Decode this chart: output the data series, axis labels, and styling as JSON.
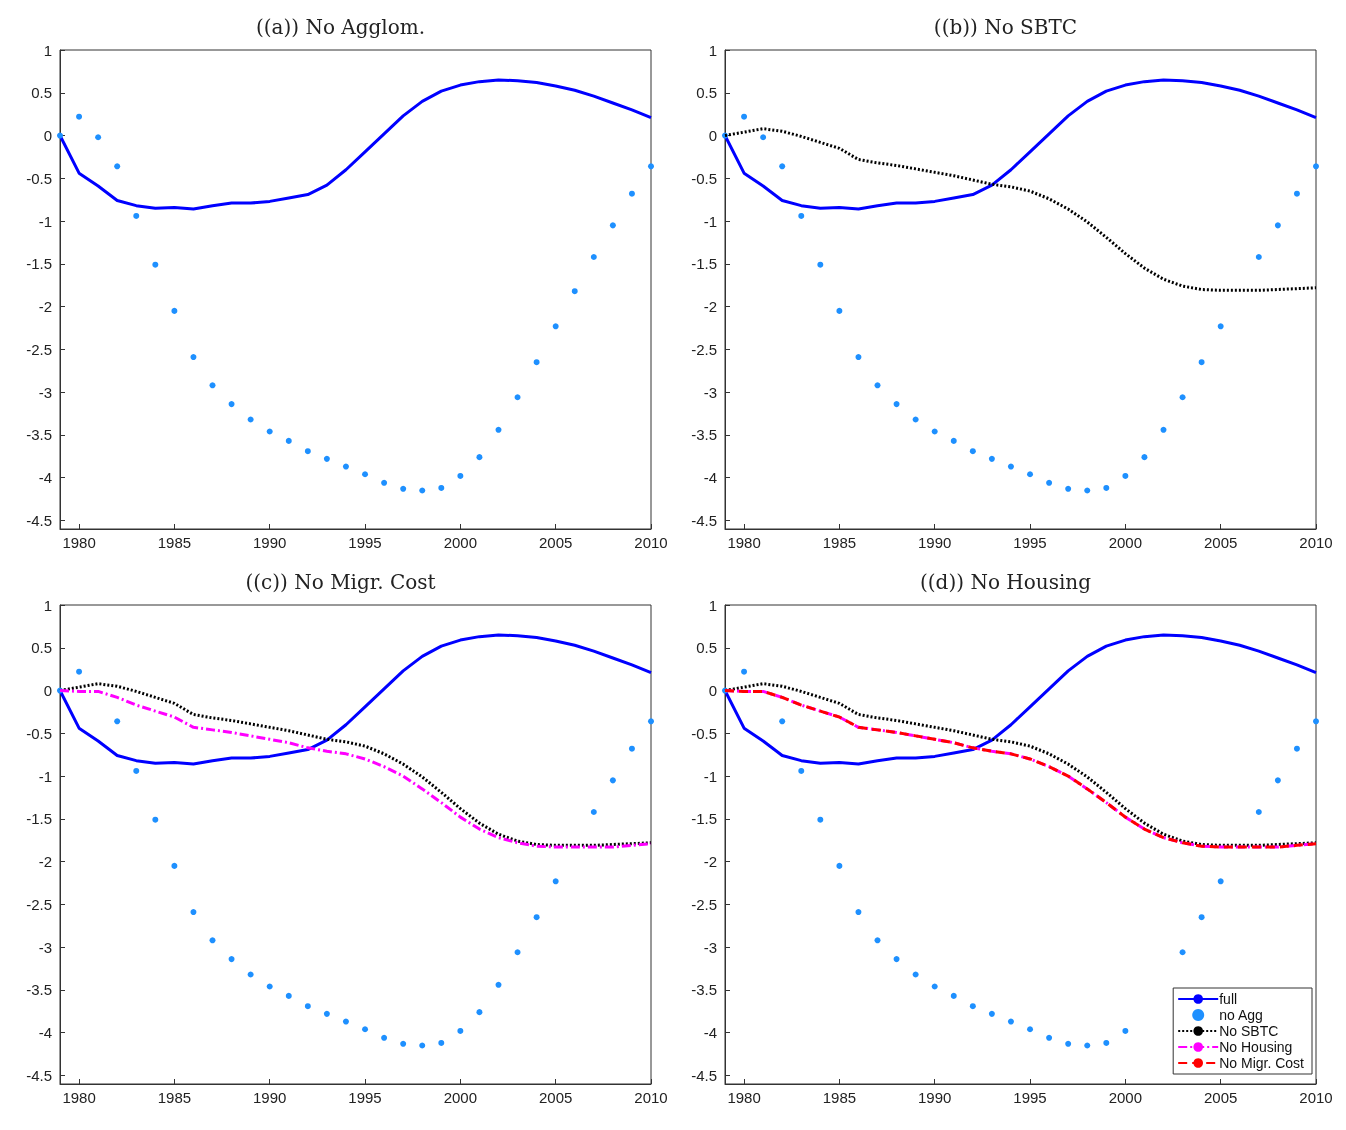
{
  "chart_data": [
    {
      "type": "line",
      "title": "((a)) No Agglom.",
      "x": [
        1979,
        1980,
        1981,
        1982,
        1983,
        1984,
        1985,
        1986,
        1987,
        1988,
        1989,
        1990,
        1991,
        1992,
        1993,
        1994,
        1995,
        1996,
        1997,
        1998,
        1999,
        2000,
        2001,
        2002,
        2003,
        2004,
        2005,
        2006,
        2007,
        2008,
        2009,
        2010
      ],
      "xlim": [
        1979,
        2010
      ],
      "xticks": [
        1980,
        1985,
        1990,
        1995,
        2000,
        2005,
        2010
      ],
      "ylim": [
        -4.6,
        1
      ],
      "yticks": [
        -4.5,
        -4,
        -3.5,
        -3,
        -2.5,
        -2,
        -1.5,
        -1,
        -0.5,
        0,
        0.5,
        1
      ],
      "grid": false,
      "legend": false,
      "series": [
        {
          "color": "#0000ff",
          "line_style": "solid",
          "marker": "none",
          "values": [
            0,
            -0.44,
            -0.59,
            -0.76,
            -0.82,
            -0.85,
            -0.84,
            -0.86,
            -0.82,
            -0.79,
            -0.79,
            -0.77,
            -0.73,
            -0.69,
            -0.58,
            -0.4,
            -0.19,
            0.02,
            0.23,
            0.4,
            0.52,
            0.59,
            0.63,
            0.65,
            0.64,
            0.62,
            0.58,
            0.53,
            0.46,
            0.38,
            0.3,
            0.21
          ]
        },
        {
          "type": "scatter",
          "color": "#1e90ff",
          "marker": "circle",
          "values": [
            0,
            0.22,
            -0.02,
            -0.36,
            -0.94,
            -1.51,
            -2.05,
            -2.59,
            -2.92,
            -3.14,
            -3.32,
            -3.46,
            -3.57,
            -3.69,
            -3.78,
            -3.87,
            -3.96,
            -4.06,
            -4.13,
            -4.15,
            -4.12,
            -3.98,
            -3.76,
            -3.44,
            -3.06,
            -2.65,
            -2.23,
            -1.82,
            -1.42,
            -1.05,
            -0.68,
            -0.36
          ]
        }
      ]
    },
    {
      "type": "line",
      "title": "((b)) No SBTC",
      "x": [
        1979,
        1980,
        1981,
        1982,
        1983,
        1984,
        1985,
        1986,
        1987,
        1988,
        1989,
        1990,
        1991,
        1992,
        1993,
        1994,
        1995,
        1996,
        1997,
        1998,
        1999,
        2000,
        2001,
        2002,
        2003,
        2004,
        2005,
        2006,
        2007,
        2008,
        2009,
        2010
      ],
      "xlim": [
        1979,
        2010
      ],
      "xticks": [
        1980,
        1985,
        1990,
        1995,
        2000,
        2005,
        2010
      ],
      "ylim": [
        -4.6,
        1
      ],
      "yticks": [
        -4.5,
        -4,
        -3.5,
        -3,
        -2.5,
        -2,
        -1.5,
        -1,
        -0.5,
        0,
        0.5,
        1
      ],
      "grid": false,
      "legend": false,
      "series": [
        {
          "type": "line",
          "color": "#0000ff",
          "line_style": "solid",
          "marker": "none",
          "values": [
            0,
            -0.44,
            -0.59,
            -0.76,
            -0.82,
            -0.85,
            -0.84,
            -0.86,
            -0.82,
            -0.79,
            -0.79,
            -0.77,
            -0.73,
            -0.69,
            -0.58,
            -0.4,
            -0.19,
            0.02,
            0.23,
            0.4,
            0.52,
            0.59,
            0.63,
            0.65,
            0.64,
            0.62,
            0.58,
            0.53,
            0.46,
            0.38,
            0.3,
            0.21
          ]
        },
        {
          "type": "scatter",
          "color": "#1e90ff",
          "marker": "circle",
          "values": [
            0,
            0.22,
            -0.02,
            -0.36,
            -0.94,
            -1.51,
            -2.05,
            -2.59,
            -2.92,
            -3.14,
            -3.32,
            -3.46,
            -3.57,
            -3.69,
            -3.78,
            -3.87,
            -3.96,
            -4.06,
            -4.13,
            -4.15,
            -4.12,
            -3.98,
            -3.76,
            -3.44,
            -3.06,
            -2.65,
            -2.23,
            null,
            -1.42,
            -1.05,
            -0.68,
            -0.36
          ]
        },
        {
          "type": "line",
          "color": "#000000",
          "line_style": "dotted",
          "marker": "none",
          "values": [
            0,
            0.04,
            0.08,
            0.05,
            -0.01,
            -0.08,
            -0.15,
            -0.28,
            -0.32,
            -0.35,
            -0.39,
            -0.43,
            -0.47,
            -0.52,
            -0.57,
            -0.6,
            -0.65,
            -0.74,
            -0.86,
            -1.01,
            -1.19,
            -1.38,
            -1.55,
            -1.68,
            -1.76,
            -1.8,
            -1.81,
            -1.81,
            -1.81,
            -1.8,
            -1.79,
            -1.78
          ]
        }
      ]
    },
    {
      "type": "line",
      "title": "((c)) No Migr. Cost",
      "x": [
        1979,
        1980,
        1981,
        1982,
        1983,
        1984,
        1985,
        1986,
        1987,
        1988,
        1989,
        1990,
        1991,
        1992,
        1993,
        1994,
        1995,
        1996,
        1997,
        1998,
        1999,
        2000,
        2001,
        2002,
        2003,
        2004,
        2005,
        2006,
        2007,
        2008,
        2009,
        2010
      ],
      "xlim": [
        1979,
        2010
      ],
      "xticks": [
        1980,
        1985,
        1990,
        1995,
        2000,
        2005,
        2010
      ],
      "ylim": [
        -4.6,
        1
      ],
      "yticks": [
        -4.5,
        -4,
        -3.5,
        -3,
        -2.5,
        -2,
        -1.5,
        -1,
        -0.5,
        0,
        0.5,
        1
      ],
      "grid": false,
      "legend": false,
      "series": [
        {
          "type": "line",
          "color": "#0000ff",
          "line_style": "solid",
          "marker": "none",
          "values": [
            0,
            -0.44,
            -0.59,
            -0.76,
            -0.82,
            -0.85,
            -0.84,
            -0.86,
            -0.82,
            -0.79,
            -0.79,
            -0.77,
            -0.73,
            -0.69,
            -0.58,
            -0.4,
            -0.19,
            0.02,
            0.23,
            0.4,
            0.52,
            0.59,
            0.63,
            0.65,
            0.64,
            0.62,
            0.58,
            0.53,
            0.46,
            0.38,
            0.3,
            0.21
          ]
        },
        {
          "type": "scatter",
          "color": "#1e90ff",
          "marker": "circle",
          "values": [
            0,
            0.22,
            null,
            -0.36,
            -0.94,
            -1.51,
            -2.05,
            -2.59,
            -2.92,
            -3.14,
            -3.32,
            -3.46,
            -3.57,
            -3.69,
            -3.78,
            -3.87,
            -3.96,
            -4.06,
            -4.13,
            -4.15,
            -4.12,
            -3.98,
            -3.76,
            -3.44,
            -3.06,
            -2.65,
            -2.23,
            null,
            -1.42,
            -1.05,
            -0.68,
            -0.36
          ]
        },
        {
          "type": "line",
          "color": "#000000",
          "line_style": "dotted",
          "marker": "none",
          "values": [
            0,
            0.04,
            0.08,
            0.05,
            -0.01,
            -0.08,
            -0.15,
            -0.28,
            -0.32,
            -0.35,
            -0.39,
            -0.43,
            -0.47,
            -0.52,
            -0.57,
            -0.6,
            -0.65,
            -0.74,
            -0.86,
            -1.01,
            -1.19,
            -1.38,
            -1.55,
            -1.68,
            -1.76,
            -1.8,
            -1.81,
            -1.81,
            -1.81,
            -1.8,
            -1.79,
            -1.78
          ]
        },
        {
          "type": "line",
          "color": "#ff00ff",
          "line_style": "dashdot",
          "marker": "none",
          "values": [
            0,
            -0.01,
            -0.01,
            -0.08,
            -0.17,
            -0.24,
            -0.31,
            -0.43,
            -0.46,
            -0.49,
            -0.53,
            -0.57,
            -0.61,
            -0.67,
            -0.71,
            -0.74,
            -0.8,
            -0.89,
            -1,
            -1.15,
            -1.31,
            -1.48,
            -1.62,
            -1.72,
            -1.78,
            -1.82,
            -1.83,
            -1.83,
            -1.83,
            -1.83,
            -1.81,
            -1.79
          ]
        }
      ]
    },
    {
      "type": "line",
      "title": "((d)) No Housing",
      "x": [
        1979,
        1980,
        1981,
        1982,
        1983,
        1984,
        1985,
        1986,
        1987,
        1988,
        1989,
        1990,
        1991,
        1992,
        1993,
        1994,
        1995,
        1996,
        1997,
        1998,
        1999,
        2000,
        2001,
        2002,
        2003,
        2004,
        2005,
        2006,
        2007,
        2008,
        2009,
        2010
      ],
      "xlim": [
        1979,
        2010
      ],
      "xticks": [
        1980,
        1985,
        1990,
        1995,
        2000,
        2005,
        2010
      ],
      "ylim": [
        -4.6,
        1
      ],
      "yticks": [
        -4.5,
        -4,
        -3.5,
        -3,
        -2.5,
        -2,
        -1.5,
        -1,
        -0.5,
        0,
        0.5,
        1
      ],
      "grid": false,
      "legend": "bottom right",
      "series": [
        {
          "type": "line",
          "name": "full",
          "color": "#0000ff",
          "line_style": "solid",
          "marker": "none",
          "values": [
            0,
            -0.44,
            -0.59,
            -0.76,
            -0.82,
            -0.85,
            -0.84,
            -0.86,
            -0.82,
            -0.79,
            -0.79,
            -0.77,
            -0.73,
            -0.69,
            -0.58,
            -0.4,
            -0.19,
            0.02,
            0.23,
            0.4,
            0.52,
            0.59,
            0.63,
            0.65,
            0.64,
            0.62,
            0.58,
            0.53,
            0.46,
            0.38,
            0.3,
            0.21
          ]
        },
        {
          "type": "scatter",
          "name": "no Agg",
          "color": "#1e90ff",
          "marker": "circle",
          "values": [
            0,
            0.22,
            null,
            -0.36,
            -0.94,
            -1.51,
            -2.05,
            -2.59,
            -2.92,
            -3.14,
            -3.32,
            -3.46,
            -3.57,
            -3.69,
            -3.78,
            -3.87,
            -3.96,
            -4.06,
            -4.13,
            -4.15,
            -4.12,
            -3.98,
            null,
            null,
            -3.06,
            -2.65,
            -2.23,
            null,
            -1.42,
            -1.05,
            -0.68,
            -0.36
          ]
        },
        {
          "type": "line",
          "name": "No SBTC",
          "color": "#000000",
          "line_style": "dotted",
          "marker": "none",
          "values": [
            0,
            0.04,
            0.08,
            0.05,
            -0.01,
            -0.08,
            -0.15,
            -0.28,
            -0.32,
            -0.35,
            -0.39,
            -0.43,
            -0.47,
            -0.52,
            -0.57,
            -0.6,
            -0.65,
            -0.74,
            -0.86,
            -1.01,
            -1.19,
            -1.38,
            -1.55,
            -1.68,
            -1.76,
            -1.8,
            -1.81,
            -1.81,
            -1.81,
            -1.8,
            -1.79,
            -1.78
          ]
        },
        {
          "type": "line",
          "name": "No Housing",
          "color": "#ff00ff",
          "line_style": "dashdot",
          "marker": "none",
          "values": [
            0,
            -0.01,
            -0.01,
            -0.08,
            -0.17,
            -0.24,
            -0.31,
            -0.43,
            -0.46,
            -0.49,
            -0.53,
            -0.57,
            -0.61,
            -0.67,
            -0.71,
            -0.74,
            -0.8,
            -0.89,
            -1,
            -1.15,
            -1.31,
            -1.48,
            -1.62,
            -1.72,
            -1.78,
            -1.82,
            -1.83,
            -1.83,
            -1.83,
            -1.83,
            -1.81,
            -1.79
          ]
        },
        {
          "type": "line",
          "name": "No Migr. Cost",
          "color": "#ff0000",
          "line_style": "dashed",
          "marker": "none",
          "values": [
            0,
            -0.01,
            -0.01,
            -0.08,
            -0.17,
            -0.24,
            -0.31,
            -0.43,
            -0.46,
            -0.49,
            -0.53,
            -0.57,
            -0.61,
            -0.67,
            -0.71,
            -0.74,
            -0.8,
            -0.89,
            -1,
            -1.15,
            -1.31,
            -1.48,
            -1.62,
            -1.72,
            -1.78,
            -1.82,
            -1.83,
            -1.83,
            -1.83,
            -1.83,
            -1.81,
            -1.79
          ]
        }
      ]
    }
  ]
}
